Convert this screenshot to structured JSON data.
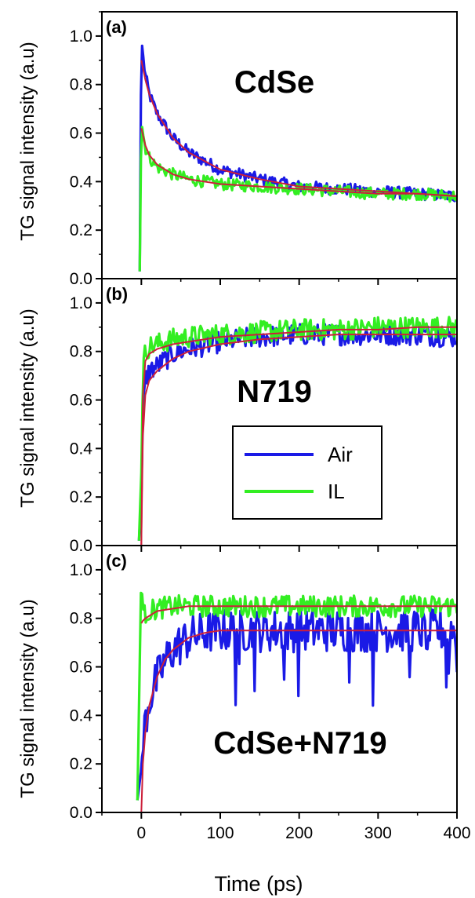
{
  "figure": {
    "xlabel": "Time (ps)",
    "ylabel": "TG signal intensity (a.u)"
  },
  "colors": {
    "air": "#1a1ae6",
    "il": "#33ee22",
    "fit": "#cc1f3a",
    "axis": "#000000"
  },
  "legend": {
    "items": [
      {
        "label": "Air",
        "color": "#1a1ae6"
      },
      {
        "label": "IL",
        "color": "#33ee22"
      }
    ]
  },
  "chart_data": [
    {
      "type": "line",
      "panel": "(a)",
      "title": "CdSe",
      "xlim": [
        -50,
        400
      ],
      "ylim": [
        0,
        1.1
      ],
      "xticks": [
        0,
        100,
        200,
        300,
        400
      ],
      "yticks": [
        0.0,
        0.2,
        0.4,
        0.6,
        0.8,
        1.0
      ],
      "series": [
        {
          "name": "Air",
          "x": [
            -2,
            0,
            2,
            5,
            10,
            20,
            40,
            60,
            100,
            150,
            200,
            250,
            300,
            350,
            400
          ],
          "y": [
            0.03,
            1.0,
            0.92,
            0.84,
            0.76,
            0.68,
            0.58,
            0.52,
            0.45,
            0.41,
            0.38,
            0.37,
            0.36,
            0.35,
            0.34
          ]
        },
        {
          "name": "IL",
          "x": [
            -2,
            0,
            2,
            5,
            10,
            20,
            40,
            60,
            100,
            150,
            200,
            250,
            300,
            350,
            400
          ],
          "y": [
            0.03,
            0.65,
            0.6,
            0.54,
            0.5,
            0.46,
            0.43,
            0.41,
            0.39,
            0.38,
            0.37,
            0.36,
            0.35,
            0.35,
            0.34
          ]
        },
        {
          "name": "",
          "role": "fit",
          "x": [
            0,
            5,
            10,
            20,
            40,
            60,
            100,
            150,
            200,
            250,
            300,
            350,
            400
          ],
          "y": [
            0.9,
            0.82,
            0.76,
            0.68,
            0.58,
            0.52,
            0.45,
            0.41,
            0.38,
            0.37,
            0.36,
            0.35,
            0.34
          ]
        },
        {
          "name": "",
          "role": "fit",
          "x": [
            0,
            5,
            10,
            20,
            40,
            60,
            100,
            150,
            200,
            250,
            300,
            350,
            400
          ],
          "y": [
            0.62,
            0.55,
            0.51,
            0.47,
            0.43,
            0.41,
            0.39,
            0.38,
            0.37,
            0.36,
            0.35,
            0.35,
            0.34
          ]
        }
      ]
    },
    {
      "type": "line",
      "panel": "(b)",
      "title": "N719",
      "xlim": [
        -50,
        400
      ],
      "ylim": [
        0,
        1.1
      ],
      "xticks": [
        0,
        100,
        200,
        300,
        400
      ],
      "yticks": [
        0.0,
        0.2,
        0.4,
        0.6,
        0.8,
        1.0
      ],
      "series": [
        {
          "name": "Air",
          "x": [
            -3,
            0,
            2,
            5,
            10,
            20,
            40,
            60,
            100,
            150,
            200,
            250,
            300,
            350,
            400
          ],
          "y": [
            0.02,
            0.2,
            0.55,
            0.68,
            0.72,
            0.74,
            0.79,
            0.81,
            0.84,
            0.86,
            0.87,
            0.87,
            0.87,
            0.87,
            0.86
          ]
        },
        {
          "name": "IL",
          "x": [
            -3,
            0,
            2,
            5,
            10,
            20,
            40,
            60,
            100,
            150,
            200,
            250,
            300,
            350,
            400
          ],
          "y": [
            0.02,
            0.3,
            0.72,
            0.8,
            0.82,
            0.83,
            0.85,
            0.86,
            0.87,
            0.88,
            0.89,
            0.89,
            0.9,
            0.9,
            0.9
          ]
        },
        {
          "name": "",
          "role": "fit",
          "x": [
            0,
            2,
            5,
            10,
            20,
            40,
            60,
            100,
            150,
            200,
            250,
            300,
            350,
            400
          ],
          "y": [
            0.0,
            0.45,
            0.62,
            0.68,
            0.72,
            0.77,
            0.8,
            0.83,
            0.85,
            0.86,
            0.87,
            0.87,
            0.87,
            0.87
          ]
        },
        {
          "name": "",
          "role": "fit",
          "x": [
            0,
            2,
            5,
            10,
            20,
            40,
            60,
            100,
            150,
            200,
            250,
            300,
            350,
            400
          ],
          "y": [
            0.0,
            0.62,
            0.76,
            0.79,
            0.81,
            0.83,
            0.84,
            0.86,
            0.87,
            0.88,
            0.89,
            0.89,
            0.9,
            0.9
          ]
        }
      ]
    },
    {
      "type": "line",
      "panel": "(c)",
      "title": "CdSe+N719",
      "xlim": [
        -50,
        400
      ],
      "ylim": [
        0,
        1.1
      ],
      "xticks": [
        0,
        100,
        200,
        300,
        400
      ],
      "yticks": [
        0.0,
        0.2,
        0.4,
        0.6,
        0.8,
        1.0
      ],
      "series": [
        {
          "name": "Air",
          "x": [
            -5,
            0,
            2,
            5,
            10,
            20,
            30,
            40,
            60,
            80,
            100,
            150,
            200,
            250,
            300,
            350,
            400
          ],
          "y": [
            0.05,
            0.18,
            0.28,
            0.38,
            0.46,
            0.55,
            0.62,
            0.67,
            0.72,
            0.74,
            0.75,
            0.75,
            0.75,
            0.75,
            0.75,
            0.75,
            0.75
          ]
        },
        {
          "name": "IL",
          "x": [
            -5,
            0,
            2,
            5,
            10,
            20,
            40,
            60,
            100,
            150,
            200,
            250,
            300,
            350,
            400
          ],
          "y": [
            0.05,
            1.0,
            0.8,
            0.82,
            0.83,
            0.84,
            0.85,
            0.85,
            0.85,
            0.85,
            0.85,
            0.85,
            0.85,
            0.85,
            0.85
          ]
        },
        {
          "name": "",
          "role": "fit",
          "x": [
            0,
            2,
            5,
            10,
            20,
            30,
            40,
            60,
            80,
            100,
            150,
            200,
            250,
            300,
            350,
            400
          ],
          "y": [
            0.0,
            0.2,
            0.33,
            0.44,
            0.56,
            0.63,
            0.67,
            0.72,
            0.74,
            0.75,
            0.75,
            0.75,
            0.75,
            0.75,
            0.75,
            0.75
          ]
        },
        {
          "name": "",
          "role": "fit",
          "x": [
            0,
            2,
            5,
            10,
            20,
            40,
            60,
            100,
            150,
            200,
            250,
            300,
            350,
            400
          ],
          "y": [
            0.78,
            0.79,
            0.8,
            0.81,
            0.83,
            0.84,
            0.85,
            0.85,
            0.85,
            0.85,
            0.85,
            0.85,
            0.85,
            0.85
          ]
        }
      ]
    }
  ]
}
